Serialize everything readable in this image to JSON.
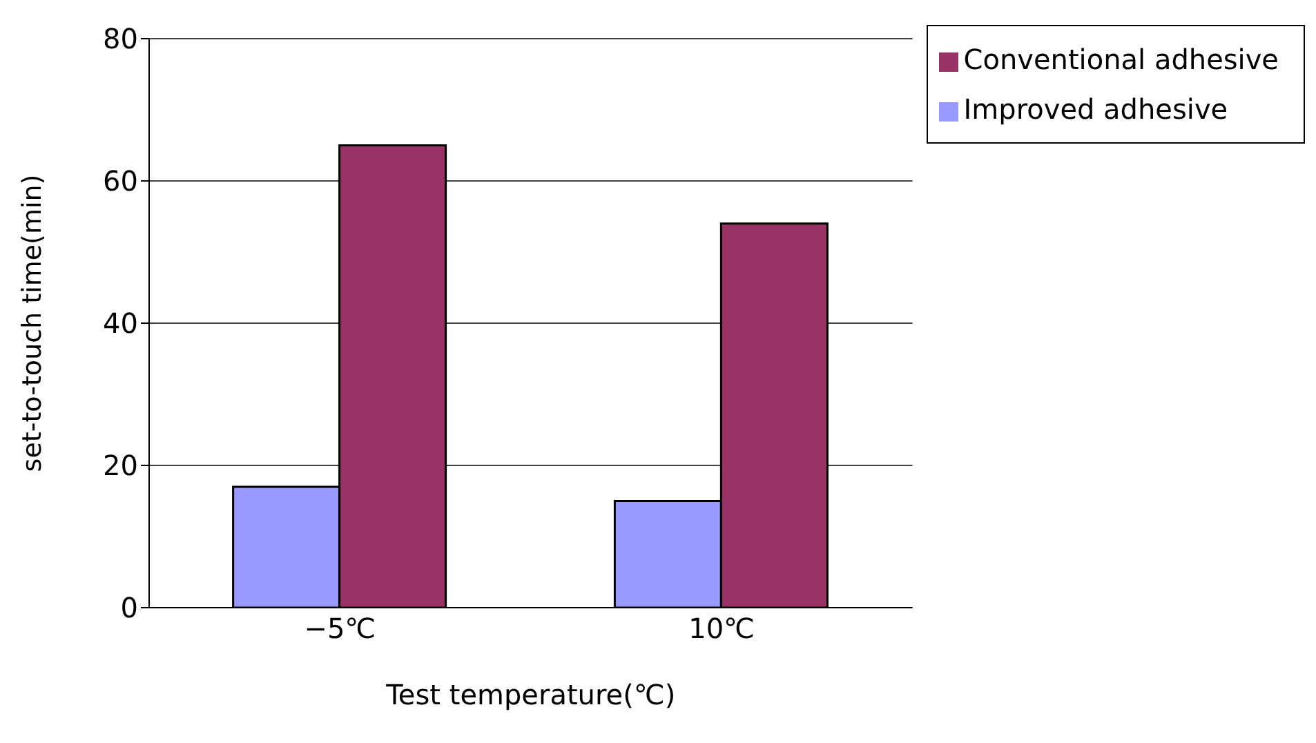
{
  "chart_data": {
    "type": "bar",
    "xlabel": "Test temperature(℃)",
    "ylabel": "set-to-touch time(min)",
    "categories": [
      "−5℃",
      "10℃"
    ],
    "series": [
      {
        "name": "Improved adhesive",
        "color": "#9999ff",
        "values": [
          17,
          15
        ]
      },
      {
        "name": "Conventional adhesive",
        "color": "#993366",
        "values": [
          65,
          54
        ]
      }
    ],
    "ylim": [
      0,
      80
    ],
    "yticks": [
      0,
      20,
      40,
      60,
      80
    ],
    "grid": "y",
    "legend": "top right"
  }
}
